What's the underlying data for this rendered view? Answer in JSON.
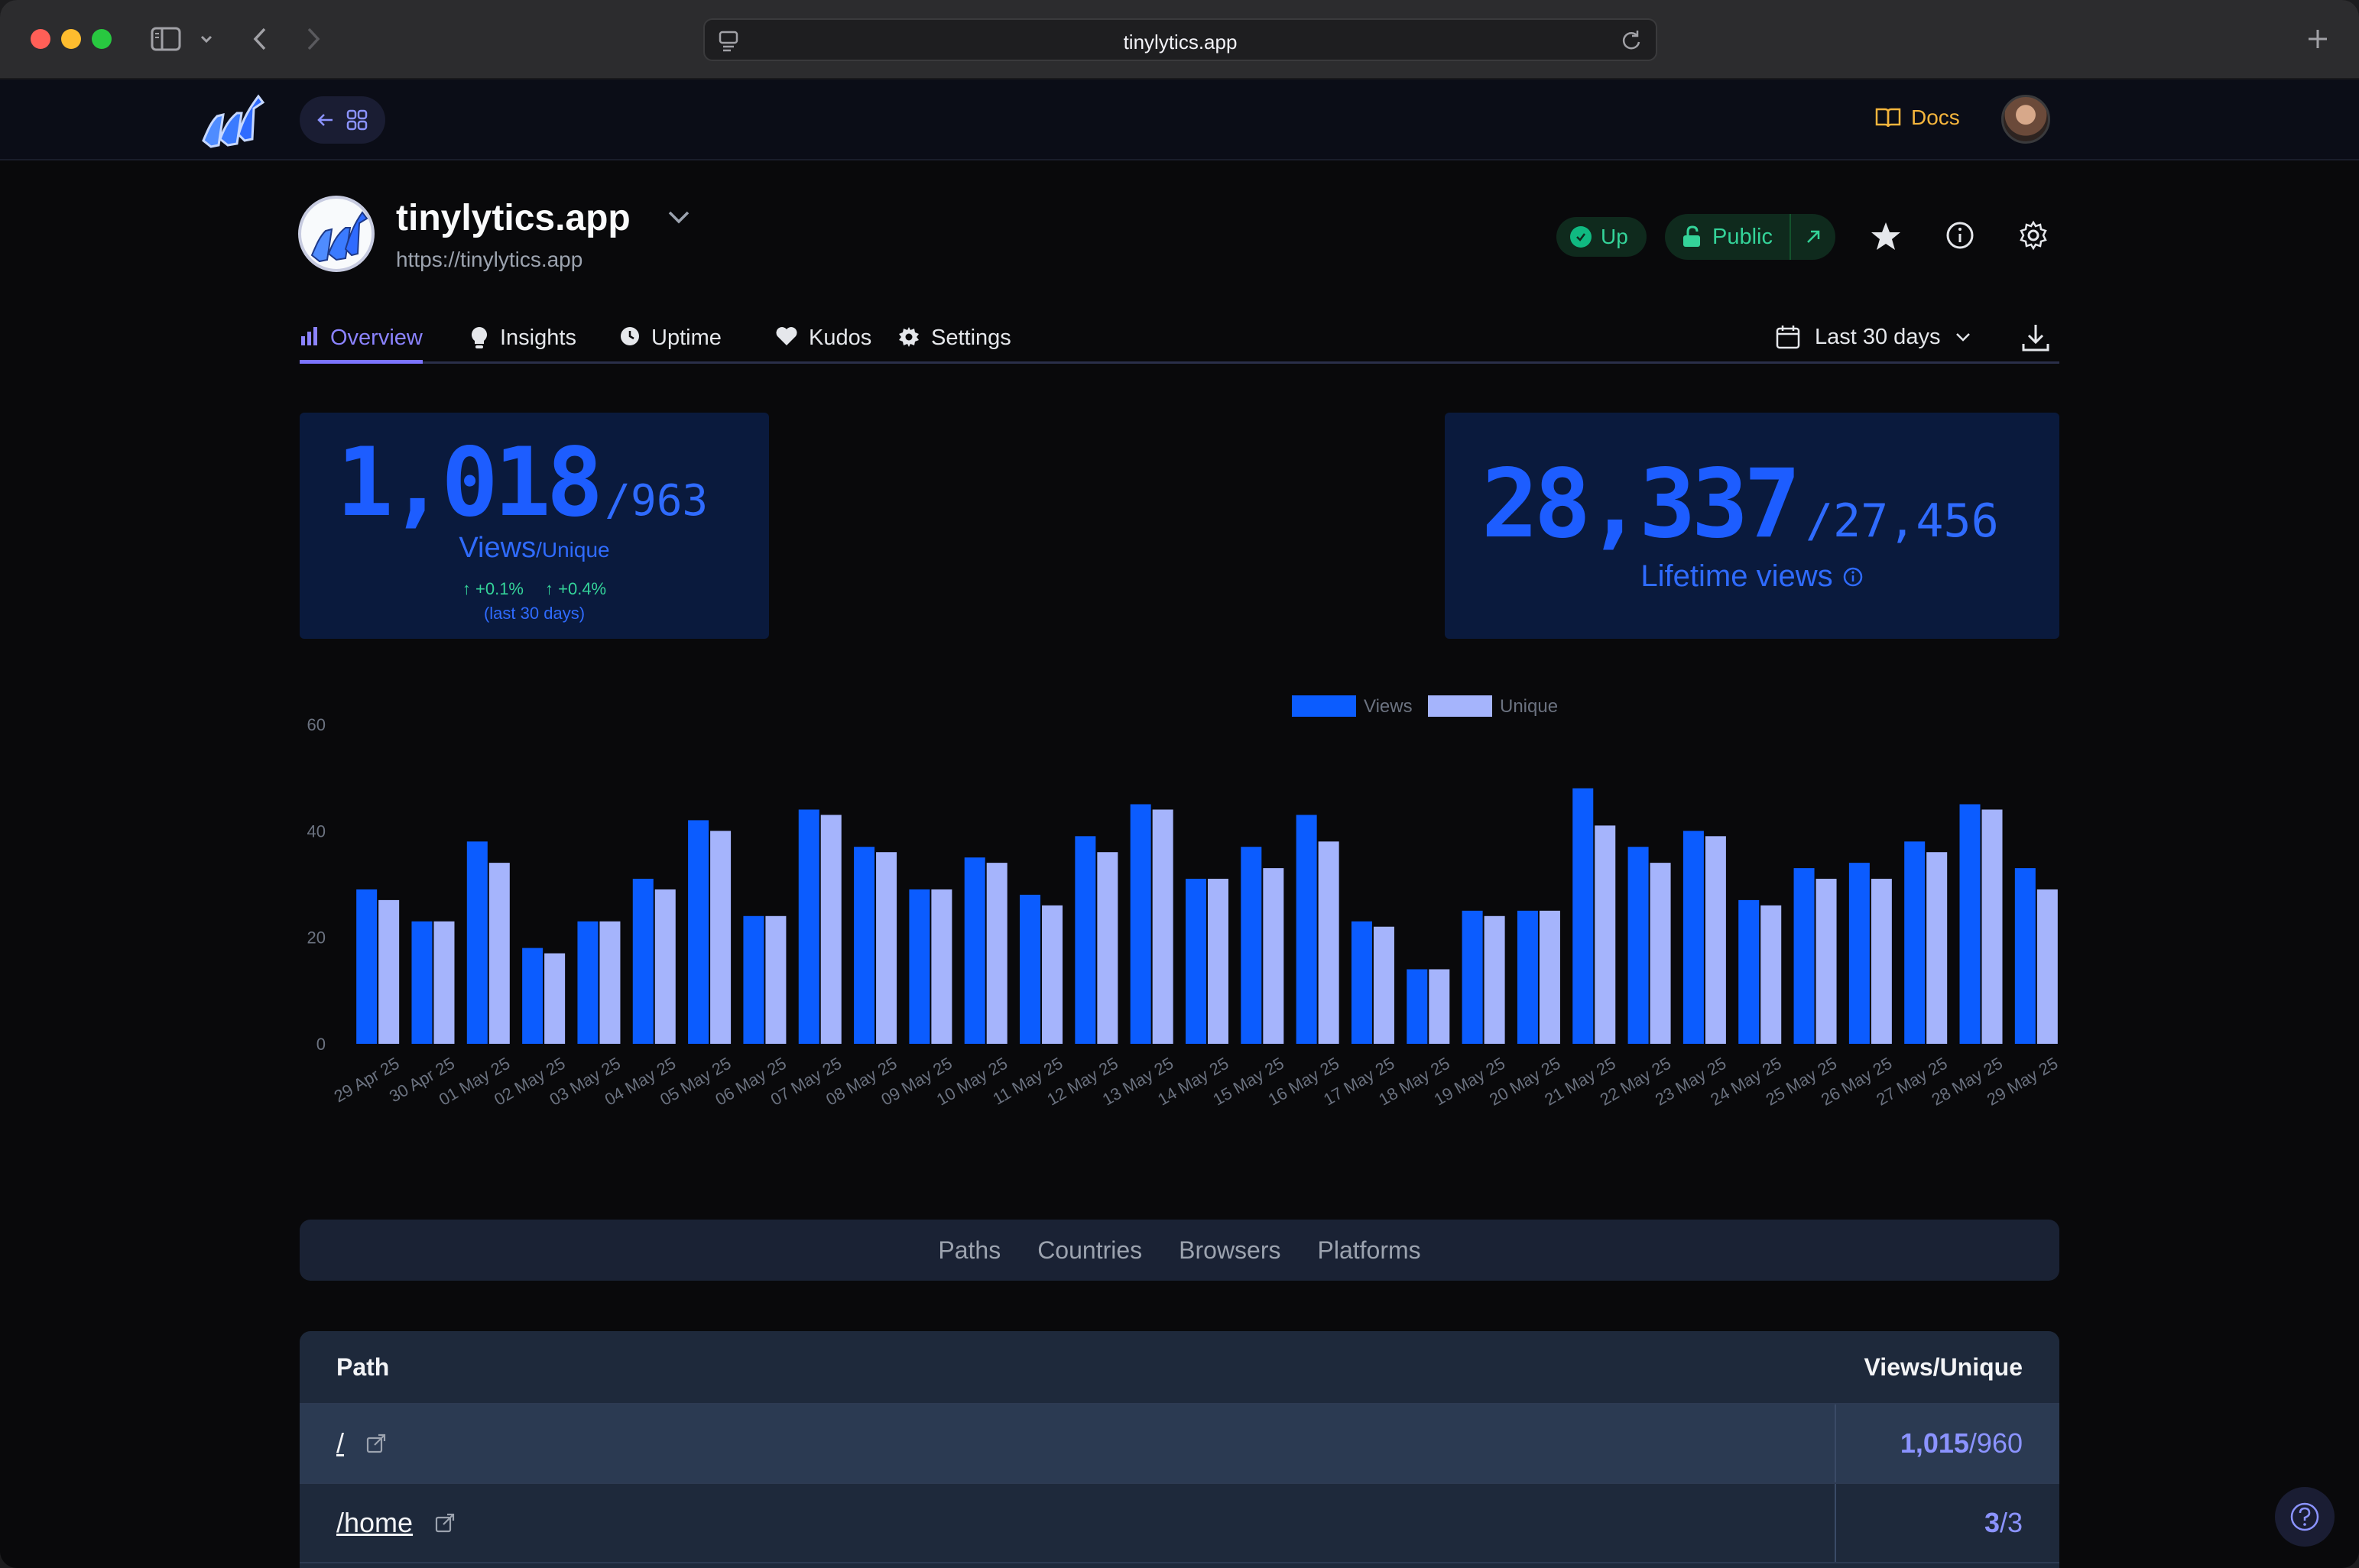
{
  "browser": {
    "url": "tinylytics.app"
  },
  "app": {
    "docs_label": "Docs"
  },
  "site": {
    "name": "tinylytics.app",
    "url": "https://tinylytics.app",
    "status": "Up",
    "visibility": "Public"
  },
  "tabs": [
    {
      "label": "Overview",
      "icon": "bar-chart-icon",
      "active": true
    },
    {
      "label": "Insights",
      "icon": "lightbulb-icon"
    },
    {
      "label": "Uptime",
      "icon": "clock-icon"
    },
    {
      "label": "Kudos",
      "icon": "heart-icon"
    },
    {
      "label": "Settings",
      "icon": "gear-icon"
    }
  ],
  "date_range": "Last 30 days",
  "stats": {
    "views": "1,018",
    "unique": "/963",
    "label_main": "Views",
    "label_sub": "/Unique",
    "views_change": "+0.1%",
    "unique_change": "+0.4%",
    "period_note": "(last 30 days)",
    "lifetime_views": "28,337",
    "lifetime_unique": "/27,456",
    "lifetime_label": "Lifetime views"
  },
  "chart_data": {
    "type": "bar",
    "categories": [
      "29 Apr 25",
      "30 Apr 25",
      "01 May 25",
      "02 May 25",
      "03 May 25",
      "04 May 25",
      "05 May 25",
      "06 May 25",
      "07 May 25",
      "08 May 25",
      "09 May 25",
      "10 May 25",
      "11 May 25",
      "12 May 25",
      "13 May 25",
      "14 May 25",
      "15 May 25",
      "16 May 25",
      "17 May 25",
      "18 May 25",
      "19 May 25",
      "20 May 25",
      "21 May 25",
      "22 May 25",
      "23 May 25",
      "24 May 25",
      "25 May 25",
      "26 May 25",
      "27 May 25",
      "28 May 25",
      "29 May 25"
    ],
    "series": [
      {
        "name": "Views",
        "color": "#0b5cff",
        "values": [
          29,
          23,
          38,
          18,
          23,
          31,
          42,
          24,
          44,
          37,
          29,
          35,
          28,
          39,
          45,
          31,
          37,
          43,
          23,
          14,
          25,
          25,
          48,
          37,
          40,
          27,
          33,
          34,
          38,
          45,
          33
        ]
      },
      {
        "name": "Unique",
        "color": "#a5b4fc",
        "values": [
          27,
          23,
          34,
          17,
          23,
          29,
          40,
          24,
          43,
          36,
          29,
          34,
          26,
          36,
          44,
          31,
          33,
          38,
          22,
          14,
          24,
          25,
          41,
          34,
          39,
          26,
          31,
          31,
          36,
          44,
          29
        ]
      }
    ],
    "ylim": [
      0,
      60
    ],
    "yticks": [
      "0",
      "20",
      "40",
      "60"
    ],
    "legend": "top-center",
    "grid": false
  },
  "breakdown_tabs": [
    "Paths",
    "Countries",
    "Browsers",
    "Platforms"
  ],
  "table": {
    "col_path": "Path",
    "col_views": "Views/Unique",
    "rows": [
      {
        "path": "/",
        "views": "1,015",
        "unique": "/960"
      },
      {
        "path": "/home",
        "views": "3",
        "unique": "/3"
      }
    ]
  }
}
